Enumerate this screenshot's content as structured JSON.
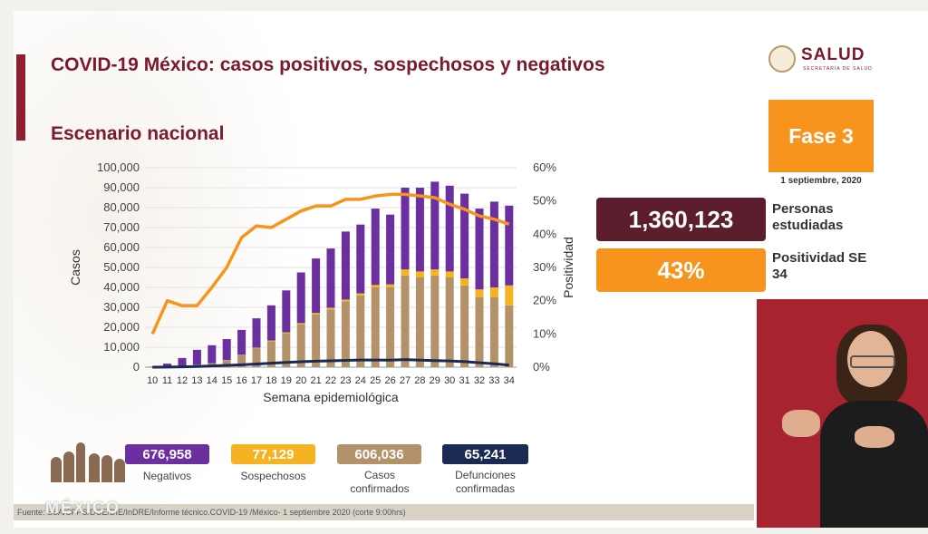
{
  "header": {
    "title": "COVID-19 México: casos positivos, sospechosos y negativos",
    "subtitle": "Escenario nacional"
  },
  "logo": {
    "name": "SALUD",
    "sub": "SECRETARÍA DE SALUD"
  },
  "phase": {
    "label": "Fase 3",
    "date": "1 septiembre, 2020"
  },
  "stats": {
    "studied_value": "1,360,123",
    "studied_label": "Personas estudiadas",
    "positivity_value": "43%",
    "positivity_label": "Positividad SE 34"
  },
  "legend": [
    {
      "value": "676,958",
      "label": "Negativos",
      "color": "#6b2fa0"
    },
    {
      "value": "77,129",
      "label": "Sospechosos",
      "color": "#f5b321"
    },
    {
      "value": "606,036",
      "label": "Casos confirmados",
      "color": "#b3926a"
    },
    {
      "value": "65,241",
      "label": "Defunciones confirmadas",
      "color": "#1a2a52"
    }
  ],
  "footer": {
    "source": "Fuente: SSA/SPPS/DGE/DIE/InDRE/Informe técnico.COVID-19 /México- 1 septiembre 2020 (corte 9:00hrs)",
    "watermark": "MÉXICO"
  },
  "colors": {
    "brand": "#7a1a2b",
    "negativos": "#6b2fa0",
    "sospechosos": "#f5b321",
    "confirmados": "#b3926a",
    "defunciones": "#1a2a52",
    "positividad": "#f7941d"
  },
  "chart_data": {
    "type": "bar",
    "stacked": true,
    "xlabel": "Semana epidemiológica",
    "ylabel": "Casos",
    "y2label": "Positividad",
    "ylim": [
      0,
      100000
    ],
    "y2lim": [
      0,
      60
    ],
    "yticks": [
      "0",
      "10,000",
      "20,000",
      "30,000",
      "40,000",
      "50,000",
      "60,000",
      "70,000",
      "80,000",
      "90,000",
      "100,000"
    ],
    "y2ticks": [
      "0%",
      "10%",
      "20%",
      "30%",
      "40%",
      "50%",
      "60%"
    ],
    "categories": [
      "10",
      "11",
      "12",
      "13",
      "14",
      "15",
      "16",
      "17",
      "18",
      "19",
      "20",
      "21",
      "22",
      "23",
      "24",
      "25",
      "26",
      "27",
      "28",
      "29",
      "30",
      "31",
      "32",
      "33",
      "34"
    ],
    "grid": true,
    "series": [
      {
        "name": "Casos confirmados",
        "color": "#b3926a",
        "values": [
          100,
          300,
          600,
          1200,
          2000,
          3500,
          6000,
          9500,
          13000,
          17000,
          21500,
          26500,
          29000,
          33000,
          36000,
          40000,
          40000,
          46000,
          45000,
          46000,
          45000,
          41000,
          35000,
          35000,
          31000
        ]
      },
      {
        "name": "Sospechosos",
        "color": "#f5b321",
        "values": [
          0,
          0,
          0,
          0,
          0,
          100,
          200,
          300,
          400,
          500,
          600,
          700,
          800,
          900,
          1000,
          1200,
          1500,
          3000,
          3000,
          3000,
          3000,
          3500,
          4000,
          5000,
          10000
        ]
      },
      {
        "name": "Negativos",
        "color": "#6b2fa0",
        "values": [
          200,
          1500,
          4000,
          7500,
          9000,
          10500,
          12500,
          14700,
          17600,
          21000,
          25400,
          27300,
          29700,
          34100,
          34500,
          38300,
          35000,
          41000,
          42000,
          44000,
          43000,
          42500,
          40500,
          43000,
          40000
        ]
      },
      {
        "name": "Defunciones confirmadas",
        "color": "#1a2a52",
        "type": "line",
        "values": [
          0,
          50,
          150,
          350,
          600,
          900,
          1200,
          1600,
          2000,
          2400,
          2700,
          3000,
          3200,
          3400,
          3600,
          3600,
          3500,
          3800,
          3500,
          3300,
          3100,
          2800,
          2200,
          1700,
          1000
        ]
      },
      {
        "name": "Positividad",
        "color": "#f7941d",
        "type": "line",
        "axis": "right",
        "unit": "%",
        "values": [
          10,
          20,
          18.5,
          18.5,
          24,
          30,
          39,
          42.5,
          42,
          44.5,
          47,
          48.5,
          48.5,
          50.5,
          50.5,
          51.5,
          52,
          52,
          51.5,
          51,
          49,
          47.5,
          45.5,
          44.5,
          43
        ]
      }
    ]
  }
}
